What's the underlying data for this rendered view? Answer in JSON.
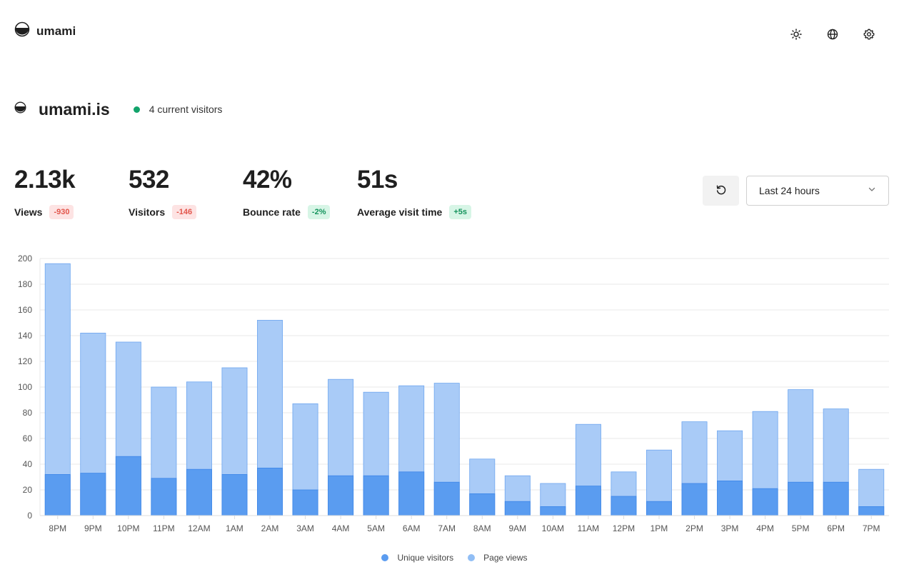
{
  "app": {
    "name": "umami"
  },
  "header": {
    "icons": [
      "sun-icon",
      "globe-icon",
      "gear-icon"
    ]
  },
  "site": {
    "name": "umami.is",
    "live_text": "4 current visitors"
  },
  "metrics": [
    {
      "value": "2.13k",
      "label": "Views",
      "change": "-930",
      "trend": "neg"
    },
    {
      "value": "532",
      "label": "Visitors",
      "change": "-146",
      "trend": "neg"
    },
    {
      "value": "42%",
      "label": "Bounce rate",
      "change": "-2%",
      "trend": "pos"
    },
    {
      "value": "51s",
      "label": "Average visit time",
      "change": "+5s",
      "trend": "pos"
    }
  ],
  "controls": {
    "date_range": "Last 24 hours"
  },
  "colors": {
    "unique": "#2680eb",
    "pageviews": "#75aef2",
    "live": "#12a36b"
  },
  "chart_data": {
    "type": "bar",
    "stacked": "overlay",
    "categories": [
      "8PM",
      "9PM",
      "10PM",
      "11PM",
      "12AM",
      "1AM",
      "2AM",
      "3AM",
      "4AM",
      "5AM",
      "6AM",
      "7AM",
      "8AM",
      "9AM",
      "10AM",
      "11AM",
      "12PM",
      "1PM",
      "2PM",
      "3PM",
      "4PM",
      "5PM",
      "6PM",
      "7PM"
    ],
    "series": [
      {
        "name": "Unique visitors",
        "values": [
          32,
          33,
          46,
          29,
          36,
          32,
          37,
          20,
          31,
          31,
          34,
          26,
          17,
          11,
          7,
          23,
          15,
          11,
          25,
          27,
          21,
          26,
          26,
          7
        ]
      },
      {
        "name": "Page views",
        "values": [
          196,
          142,
          135,
          100,
          104,
          115,
          152,
          87,
          106,
          96,
          101,
          103,
          44,
          31,
          25,
          71,
          34,
          51,
          73,
          66,
          81,
          98,
          83,
          36
        ]
      }
    ],
    "ylim": [
      0,
      200
    ],
    "yticks": [
      0,
      20,
      40,
      60,
      80,
      100,
      120,
      140,
      160,
      180,
      200
    ],
    "grid": true,
    "legend": "bottom"
  }
}
